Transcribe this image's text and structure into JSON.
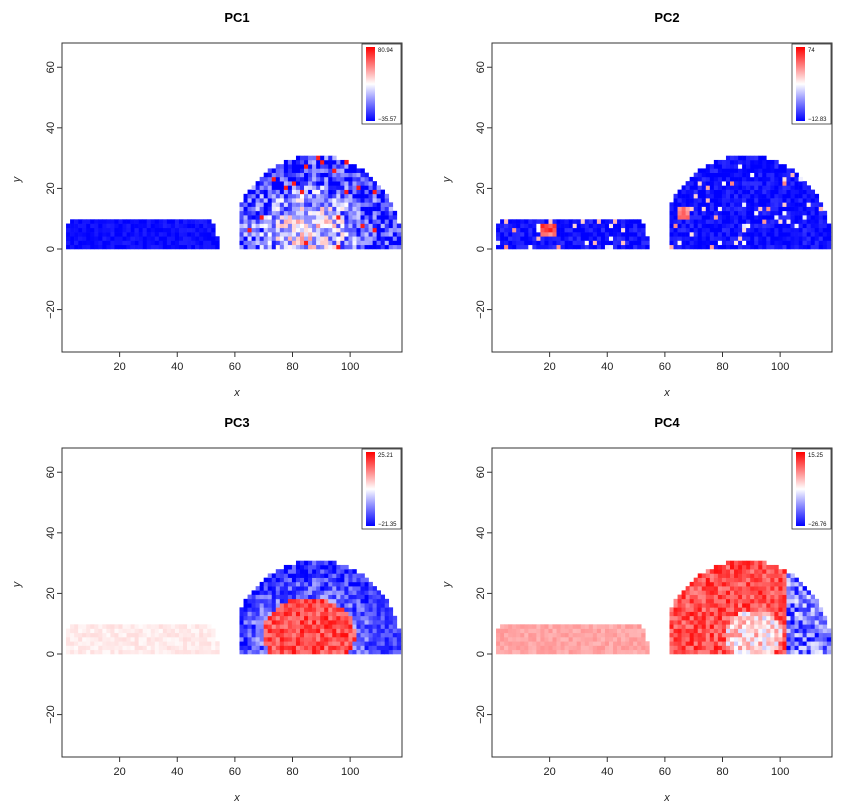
{
  "chart_data": [
    {
      "type": "heatmap",
      "title": "PC1",
      "xlabel": "x",
      "ylabel": "y",
      "xlim": [
        0,
        118
      ],
      "ylim": [
        -34,
        68
      ],
      "xticks": [
        "20",
        "40",
        "60",
        "80",
        "100"
      ],
      "yticks": [
        "60",
        "40",
        "20",
        "0",
        "−20"
      ],
      "colorbar": {
        "max": "80.94",
        "min": "−35.57",
        "position": "top-right"
      },
      "colorscale": [
        "#0000ff",
        "#ffffff",
        "#ff0000"
      ],
      "grid": false
    },
    {
      "type": "heatmap",
      "title": "PC2",
      "xlabel": "x",
      "ylabel": "y",
      "xlim": [
        0,
        118
      ],
      "ylim": [
        -34,
        68
      ],
      "xticks": [
        "20",
        "40",
        "60",
        "80",
        "100"
      ],
      "yticks": [
        "60",
        "40",
        "20",
        "0",
        "−20"
      ],
      "colorbar": {
        "max": "74",
        "min": "−12.83",
        "position": "top-right"
      },
      "colorscale": [
        "#0000ff",
        "#ffffff",
        "#ff0000"
      ],
      "grid": false
    },
    {
      "type": "heatmap",
      "title": "PC3",
      "xlabel": "x",
      "ylabel": "y",
      "xlim": [
        0,
        118
      ],
      "ylim": [
        -34,
        68
      ],
      "xticks": [
        "20",
        "40",
        "60",
        "80",
        "100"
      ],
      "yticks": [
        "60",
        "40",
        "20",
        "0",
        "−20"
      ],
      "colorbar": {
        "max": "25.21",
        "min": "−21.35",
        "position": "top-right"
      },
      "colorscale": [
        "#0000ff",
        "#ffffff",
        "#ff0000"
      ],
      "grid": false
    },
    {
      "type": "heatmap",
      "title": "PC4",
      "xlabel": "x",
      "ylabel": "y",
      "xlim": [
        0,
        118
      ],
      "ylim": [
        -34,
        68
      ],
      "xticks": [
        "20",
        "40",
        "60",
        "80",
        "100"
      ],
      "yticks": [
        "60",
        "40",
        "20",
        "0",
        "−20"
      ],
      "colorbar": {
        "max": "15.25",
        "min": "−26.76",
        "position": "top-right"
      },
      "colorscale": [
        "#0000ff",
        "#ffffff",
        "#ff0000"
      ],
      "grid": false
    }
  ]
}
